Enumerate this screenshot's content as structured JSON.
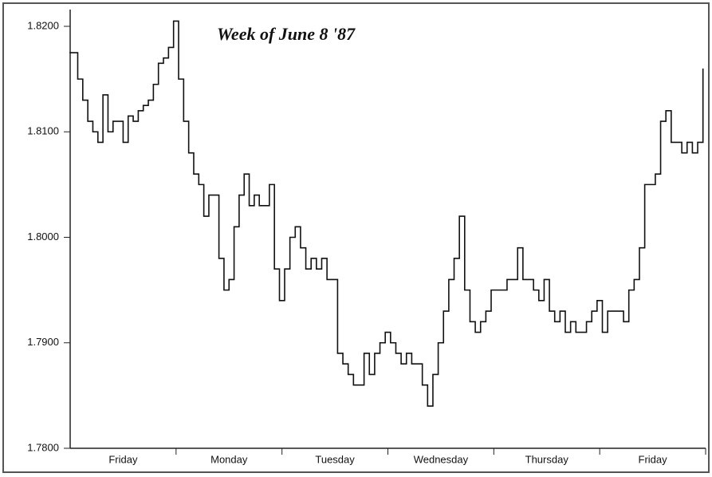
{
  "chart_data": {
    "type": "step",
    "title": "Week of  June 8 '87",
    "categories": [
      "Friday",
      "Monday",
      "Tuesday",
      "Wednesday",
      "Thursday",
      "Friday"
    ],
    "values": [
      [
        1.8175,
        1.815,
        1.813,
        1.811,
        1.81,
        1.809,
        1.8135,
        1.81,
        1.811,
        1.811,
        1.809,
        1.8115,
        1.811,
        1.812,
        1.8125,
        1.813,
        1.8145,
        1.8165,
        1.817,
        1.818,
        1.8205
      ],
      [
        1.815,
        1.811,
        1.808,
        1.806,
        1.805,
        1.802,
        1.804,
        1.804,
        1.798,
        1.795,
        1.796,
        1.801,
        1.804,
        1.806,
        1.803,
        1.804,
        1.803,
        1.803,
        1.805,
        1.797,
        1.794
      ],
      [
        1.797,
        1.8,
        1.801,
        1.799,
        1.797,
        1.798,
        1.797,
        1.798,
        1.796,
        1.796,
        1.789,
        1.788,
        1.787,
        1.786,
        1.786,
        1.789,
        1.787,
        1.789,
        1.79,
        1.791
      ],
      [
        1.79,
        1.789,
        1.788,
        1.789,
        1.788,
        1.788,
        1.786,
        1.784,
        1.787,
        1.79,
        1.793,
        1.796,
        1.798,
        1.802,
        1.795,
        1.792,
        1.791,
        1.792,
        1.793,
        1.795
      ],
      [
        1.795,
        1.795,
        1.796,
        1.796,
        1.799,
        1.796,
        1.796,
        1.795,
        1.794,
        1.796,
        1.793,
        1.792,
        1.793,
        1.791,
        1.792,
        1.791,
        1.791,
        1.792,
        1.793,
        1.794
      ],
      [
        1.791,
        1.793,
        1.793,
        1.793,
        1.792,
        1.795,
        1.796,
        1.799,
        1.805,
        1.805,
        1.806,
        1.811,
        1.812,
        1.809,
        1.809,
        1.808,
        1.809,
        1.808,
        1.809,
        1.816
      ]
    ],
    "color": "#111111",
    "ylim": [
      1.78,
      1.82
    ],
    "yticks": [
      {
        "value": 1.78,
        "label": "1.7800"
      },
      {
        "value": 1.79,
        "label": "1.7900"
      },
      {
        "value": 1.8,
        "label": "1.8000"
      },
      {
        "value": 1.81,
        "label": "1.8100"
      },
      {
        "value": 1.82,
        "label": "1.8200"
      }
    ],
    "grid": false
  }
}
